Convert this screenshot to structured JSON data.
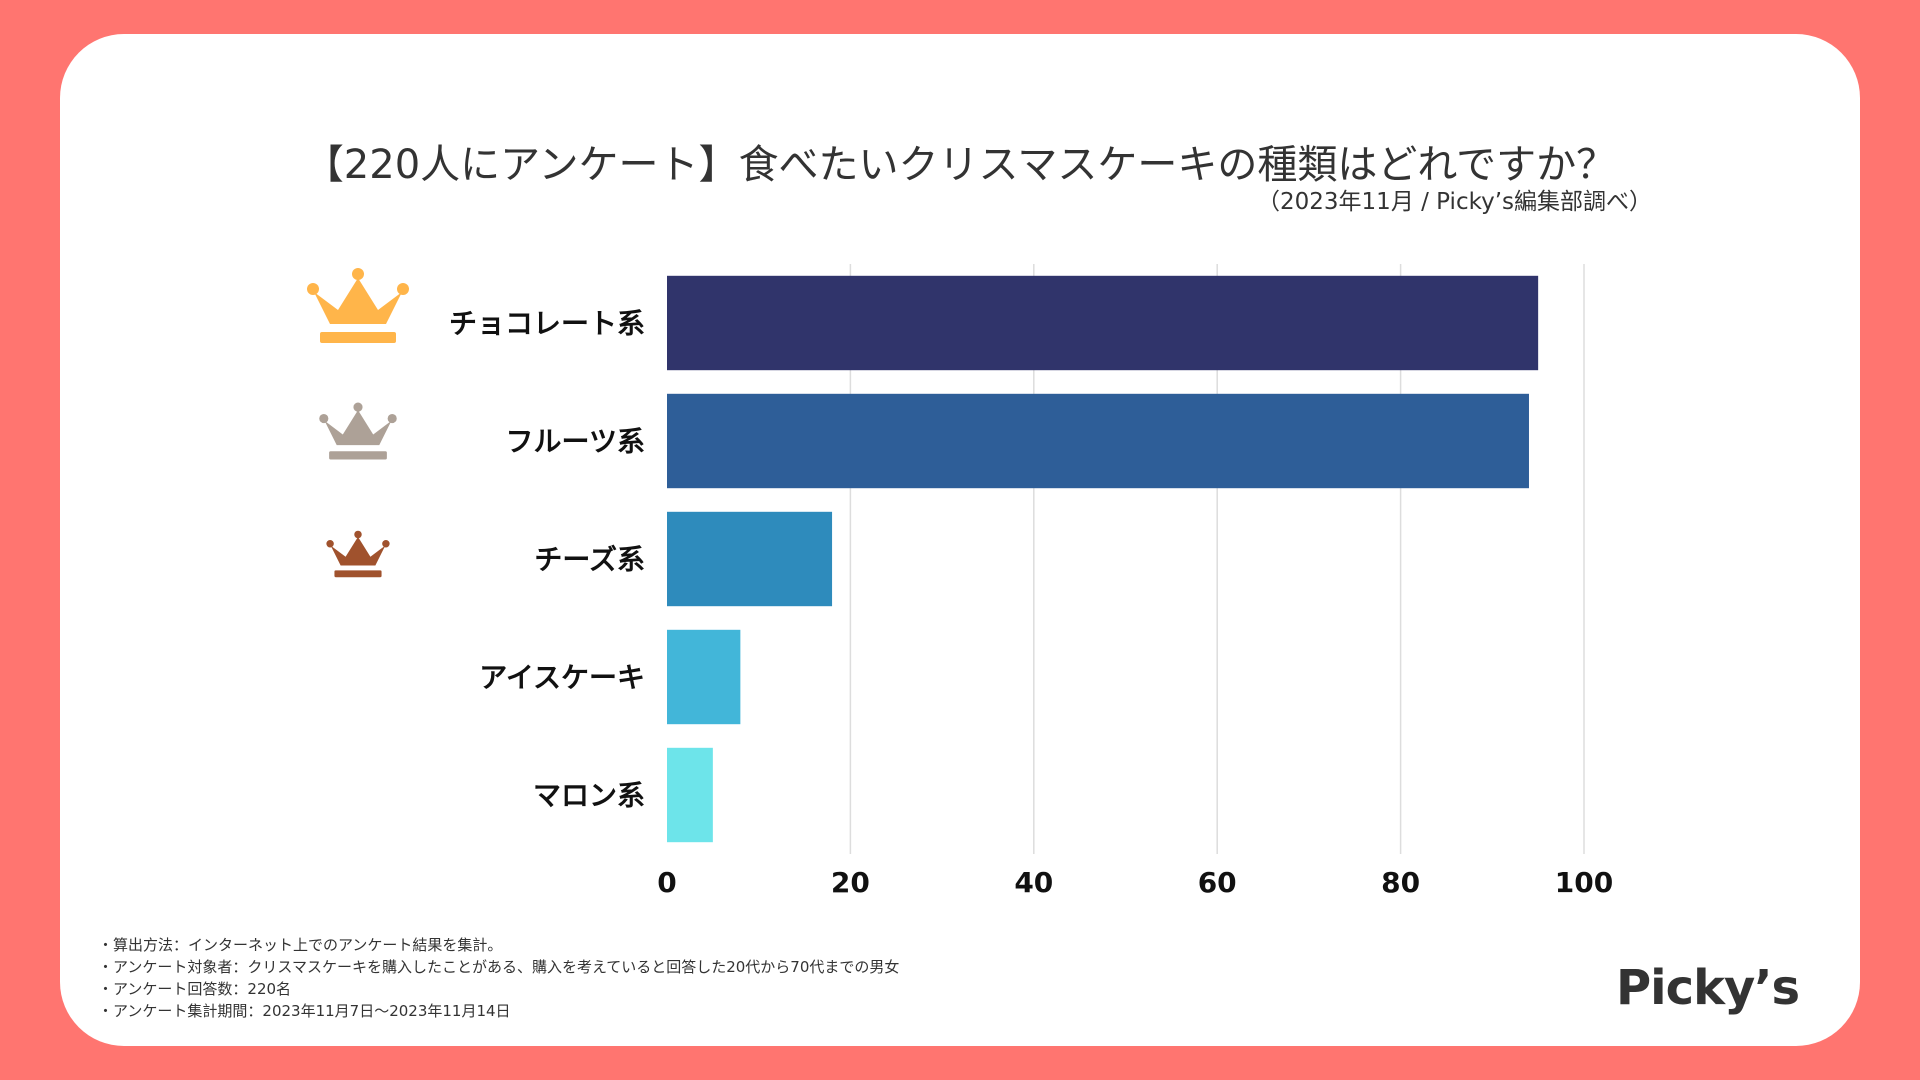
{
  "title": "【220人にアンケート】食べたいクリスマスケーキの種類はどれですか？",
  "subtitle": "（2023年11月 / Picky’s編集部調べ）",
  "chart_data": {
    "type": "bar",
    "orientation": "horizontal",
    "categories": [
      "チョコレート系",
      "フルーツ系",
      "チーズ系",
      "アイスケーキ",
      "マロン系"
    ],
    "values": [
      95,
      94,
      18,
      8,
      5
    ],
    "xlim": [
      0,
      100
    ],
    "xticks": [
      "0",
      "20",
      "40",
      "60",
      "80",
      "100"
    ],
    "grid": true,
    "bar_colors": [
      "#30346B",
      "#2E5E98",
      "#2E8BBC",
      "#42B6D9",
      "#6DE4EA"
    ],
    "rank_icons": [
      {
        "name": "gold-crown-icon",
        "color": "#FFB54A"
      },
      {
        "name": "silver-crown-icon",
        "color": "#ADA197"
      },
      {
        "name": "bronze-crown-icon",
        "color": "#A0522D"
      }
    ]
  },
  "notes": [
    "・算出方法：インターネット上でのアンケート結果を集計。",
    "・アンケート対象者：クリスマスケーキを購入したことがある、購入を考えていると回答した20代から70代までの男女",
    "・アンケート回答数：220名",
    "・アンケート集計期間：2023年11月7日〜2023年11月14日"
  ],
  "logo": "Picky’s",
  "colors": {
    "background": "#FF7570",
    "card": "#FFFFFF",
    "grid": "#DDDDDD"
  }
}
